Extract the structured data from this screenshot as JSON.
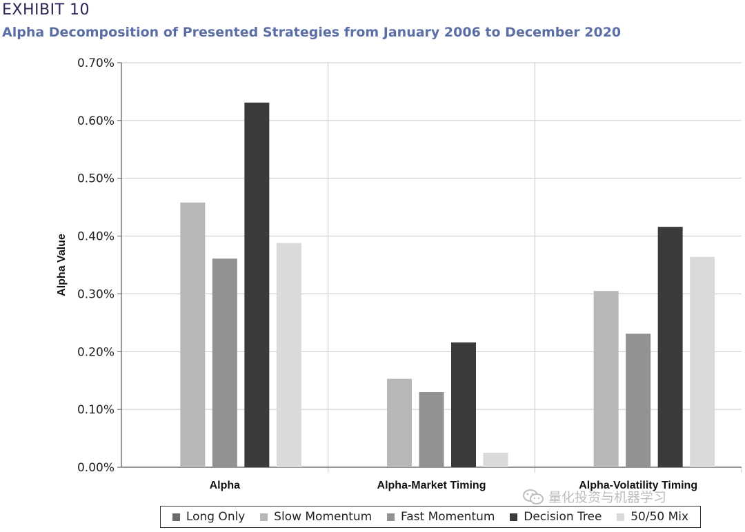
{
  "header": {
    "exhibit": "EXHIBIT 10",
    "subtitle": "Alpha Decomposition of Presented Strategies from January 2006 to December 2020"
  },
  "watermark": {
    "text": "量化投资与机器学习",
    "icon": "wechat-icon"
  },
  "chart_data": {
    "type": "bar",
    "title": "Alpha Decomposition of Presented Strategies from January 2006 to December 2020",
    "ylabel": "Alpha Value",
    "xlabel": "",
    "ylim": [
      0,
      0.7
    ],
    "yticks": [
      {
        "value": 0.0,
        "label": "0.00%"
      },
      {
        "value": 0.1,
        "label": "0.10%"
      },
      {
        "value": 0.2,
        "label": "0.20%"
      },
      {
        "value": 0.3,
        "label": "0.30%"
      },
      {
        "value": 0.4,
        "label": "0.40%"
      },
      {
        "value": 0.5,
        "label": "0.50%"
      },
      {
        "value": 0.6,
        "label": "0.60%"
      },
      {
        "value": 0.7,
        "label": "0.70%"
      }
    ],
    "categories": [
      "Alpha",
      "Alpha-Market Timing",
      "Alpha-Volatility Timing"
    ],
    "series": [
      {
        "name": "Long Only",
        "color": "#6b6b6b",
        "values": [
          0,
          0,
          0
        ]
      },
      {
        "name": "Slow Momentum",
        "color": "#b7b7b7",
        "values": [
          0.458,
          0.153,
          0.305
        ]
      },
      {
        "name": "Fast Momentum",
        "color": "#929292",
        "values": [
          0.361,
          0.13,
          0.231
        ]
      },
      {
        "name": "Decision Tree",
        "color": "#3a3a3a",
        "values": [
          0.631,
          0.216,
          0.416
        ]
      },
      {
        "name": "50/50 Mix",
        "color": "#dadada",
        "values": [
          0.388,
          0.025,
          0.364
        ]
      }
    ],
    "grid": true,
    "legend_position": "bottom"
  }
}
